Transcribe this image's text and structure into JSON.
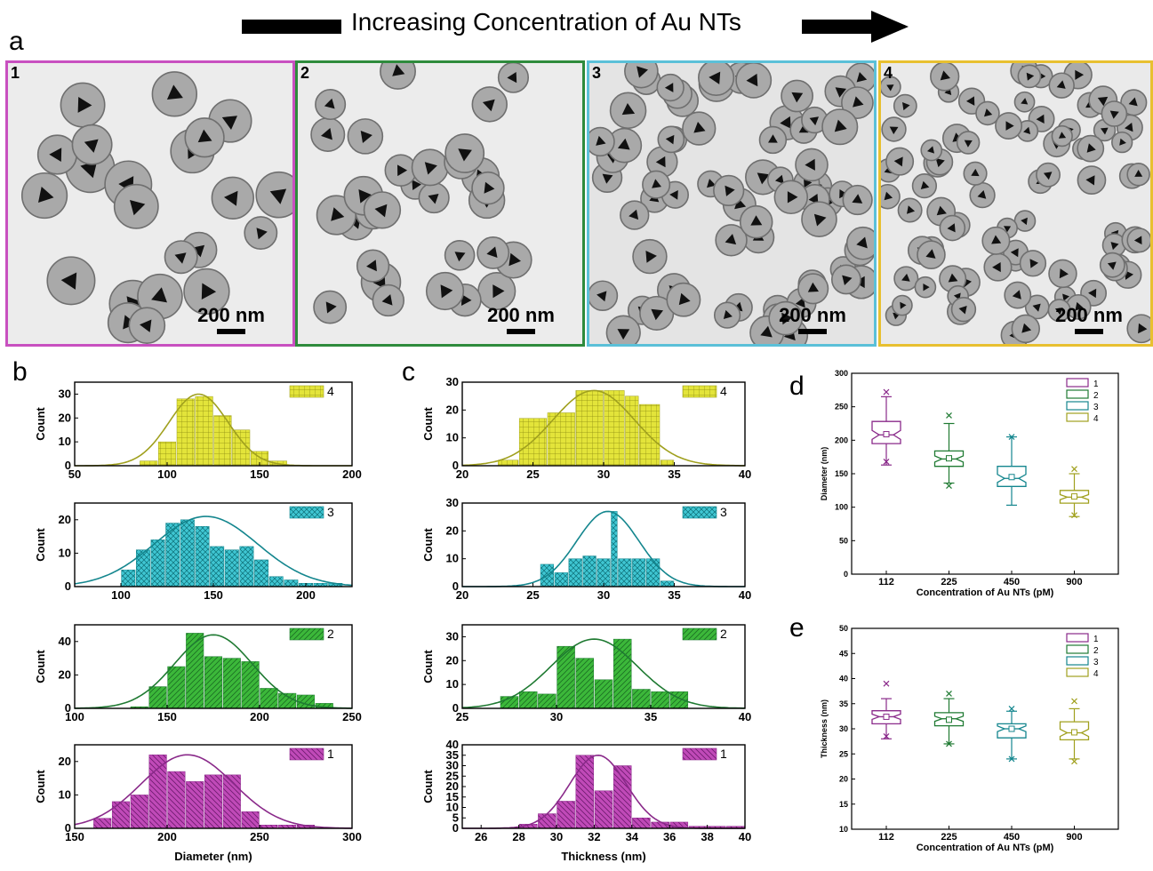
{
  "header": {
    "title": "Increasing Concentration of Au NTs"
  },
  "panel_letters": {
    "a": "a",
    "b": "b",
    "c": "c",
    "d": "d",
    "e": "e"
  },
  "tem_panels": [
    {
      "label": "1",
      "scale_bar": "200 nm",
      "border_color": "#c850c0"
    },
    {
      "label": "2",
      "scale_bar": "200 nm",
      "border_color": "#2e8b3c"
    },
    {
      "label": "3",
      "scale_bar": "200 nm",
      "border_color": "#5bc0d8"
    },
    {
      "label": "4",
      "scale_bar": "200 nm",
      "border_color": "#e8c030"
    }
  ],
  "colors": {
    "1": {
      "fill": "#c04ab8",
      "line": "#8a2a8a"
    },
    "2": {
      "fill": "#3cb83a",
      "line": "#1f7a32"
    },
    "3": {
      "fill": "#3fc6d2",
      "line": "#14868e"
    },
    "4": {
      "fill": "#e3e43a",
      "line": "#a0a01e"
    }
  },
  "chart_data": [
    {
      "panel": "b",
      "type": "bar",
      "series_label": "4",
      "ylabel": "Count",
      "xlabel": "",
      "xlim": [
        50,
        200
      ],
      "ylim": [
        0,
        35
      ],
      "xticks": [
        50,
        100,
        150,
        200
      ],
      "yticks": [
        0,
        10,
        20,
        30
      ],
      "bins": [
        [
          85,
          95,
          2
        ],
        [
          95,
          105,
          10
        ],
        [
          105,
          115,
          28
        ],
        [
          115,
          125,
          29
        ],
        [
          125,
          135,
          21
        ],
        [
          135,
          145,
          15
        ],
        [
          145,
          155,
          6
        ],
        [
          155,
          165,
          2
        ]
      ],
      "fit": {
        "mean": 117,
        "sd": 16,
        "peak": 30
      }
    },
    {
      "panel": "b",
      "type": "bar",
      "series_label": "3",
      "ylabel": "Count",
      "xlabel": "",
      "xlim": [
        75,
        225
      ],
      "ylim": [
        0,
        25
      ],
      "xticks": [
        100,
        150,
        200
      ],
      "yticks": [
        0,
        10,
        20
      ],
      "bins": [
        [
          100,
          108,
          5
        ],
        [
          108,
          116,
          11
        ],
        [
          116,
          124,
          14
        ],
        [
          124,
          132,
          19
        ],
        [
          132,
          140,
          20
        ],
        [
          140,
          148,
          18
        ],
        [
          148,
          156,
          12
        ],
        [
          156,
          164,
          11
        ],
        [
          164,
          172,
          12
        ],
        [
          172,
          180,
          8
        ],
        [
          180,
          188,
          3
        ],
        [
          188,
          196,
          2
        ],
        [
          196,
          204,
          1
        ],
        [
          204,
          212,
          1
        ],
        [
          212,
          220,
          1
        ]
      ],
      "fit": {
        "mean": 146,
        "sd": 28,
        "peak": 21
      }
    },
    {
      "panel": "b",
      "type": "bar",
      "series_label": "2",
      "ylabel": "Count",
      "xlabel": "",
      "xlim": [
        100,
        250
      ],
      "ylim": [
        0,
        50
      ],
      "xticks": [
        100,
        150,
        200,
        250
      ],
      "yticks": [
        0,
        20,
        40
      ],
      "bins": [
        [
          130,
          140,
          1
        ],
        [
          140,
          150,
          13
        ],
        [
          150,
          160,
          25
        ],
        [
          160,
          170,
          45
        ],
        [
          170,
          180,
          31
        ],
        [
          180,
          190,
          30
        ],
        [
          190,
          200,
          28
        ],
        [
          200,
          210,
          12
        ],
        [
          210,
          220,
          9
        ],
        [
          220,
          230,
          8
        ],
        [
          230,
          240,
          3
        ]
      ],
      "fit": {
        "mean": 175,
        "sd": 21,
        "peak": 44
      }
    },
    {
      "panel": "b",
      "type": "bar",
      "series_label": "1",
      "ylabel": "Count",
      "xlabel": "Diameter (nm)",
      "xlim": [
        150,
        300
      ],
      "ylim": [
        0,
        25
      ],
      "xticks": [
        150,
        200,
        250,
        300
      ],
      "yticks": [
        0,
        10,
        20
      ],
      "bins": [
        [
          160,
          170,
          3
        ],
        [
          170,
          180,
          8
        ],
        [
          180,
          190,
          10
        ],
        [
          190,
          200,
          22
        ],
        [
          200,
          210,
          17
        ],
        [
          210,
          220,
          14
        ],
        [
          220,
          230,
          16
        ],
        [
          230,
          240,
          16
        ],
        [
          240,
          250,
          5
        ],
        [
          250,
          260,
          1
        ],
        [
          260,
          270,
          1
        ],
        [
          270,
          280,
          1
        ]
      ],
      "fit": {
        "mean": 211,
        "sd": 25,
        "peak": 22
      }
    },
    {
      "panel": "c",
      "type": "bar",
      "series_label": "4",
      "ylabel": "Count",
      "xlabel": "",
      "xlim": [
        20,
        40
      ],
      "ylim": [
        0,
        30
      ],
      "xticks": [
        20,
        25,
        30,
        35,
        40
      ],
      "yticks": [
        0,
        10,
        20,
        30
      ],
      "bins": [
        [
          22.5,
          24,
          2
        ],
        [
          24,
          26,
          17
        ],
        [
          26,
          28,
          19
        ],
        [
          28,
          30,
          27
        ],
        [
          30,
          31.5,
          27
        ],
        [
          31.5,
          32.5,
          25
        ],
        [
          32.5,
          34,
          22
        ],
        [
          34,
          35,
          2
        ]
      ],
      "fit": {
        "mean": 29.3,
        "sd": 2.9,
        "peak": 27
      }
    },
    {
      "panel": "c",
      "type": "bar",
      "series_label": "3",
      "ylabel": "Count",
      "xlabel": "",
      "xlim": [
        20,
        40
      ],
      "ylim": [
        0,
        30
      ],
      "xticks": [
        20,
        25,
        30,
        35,
        40
      ],
      "yticks": [
        0,
        10,
        20,
        30
      ],
      "bins": [
        [
          25.5,
          26.5,
          8
        ],
        [
          26.5,
          27.5,
          5
        ],
        [
          27.5,
          28.5,
          10
        ],
        [
          28.5,
          29.5,
          11
        ],
        [
          29.5,
          30.5,
          10
        ],
        [
          30.5,
          31,
          27
        ],
        [
          31,
          32,
          10
        ],
        [
          32,
          33,
          10
        ],
        [
          33,
          34,
          10
        ],
        [
          34,
          35,
          2
        ],
        [
          35,
          36,
          0
        ]
      ],
      "fit": {
        "mean": 30.3,
        "sd": 2.2,
        "peak": 27
      }
    },
    {
      "panel": "c",
      "type": "bar",
      "series_label": "2",
      "ylabel": "Count",
      "xlabel": "",
      "xlim": [
        25,
        40
      ],
      "ylim": [
        0,
        35
      ],
      "xticks": [
        25,
        30,
        35,
        40
      ],
      "yticks": [
        0,
        10,
        20,
        30
      ],
      "bins": [
        [
          27,
          28,
          5
        ],
        [
          28,
          29,
          7
        ],
        [
          29,
          30,
          6
        ],
        [
          30,
          31,
          26
        ],
        [
          31,
          32,
          21
        ],
        [
          32,
          33,
          12
        ],
        [
          33,
          34,
          29
        ],
        [
          34,
          35,
          8
        ],
        [
          35,
          36,
          7
        ],
        [
          36,
          37,
          7
        ]
      ],
      "fit": {
        "mean": 32,
        "sd": 2.3,
        "peak": 29
      }
    },
    {
      "panel": "c",
      "type": "bar",
      "series_label": "1",
      "ylabel": "Count",
      "xlabel": "Thickness (nm)",
      "xlim": [
        25,
        40
      ],
      "ylim": [
        0,
        40
      ],
      "xticks": [
        26,
        28,
        30,
        32,
        34,
        36,
        38,
        40
      ],
      "yticks": [
        0,
        5,
        10,
        15,
        20,
        25,
        30,
        35,
        40
      ],
      "bins": [
        [
          28,
          29,
          2
        ],
        [
          29,
          30,
          7
        ],
        [
          30,
          31,
          13
        ],
        [
          31,
          32,
          35
        ],
        [
          32,
          33,
          18
        ],
        [
          33,
          34,
          30
        ],
        [
          34,
          35,
          5
        ],
        [
          35,
          36,
          3
        ],
        [
          36,
          37,
          3
        ],
        [
          37,
          38,
          1
        ],
        [
          38,
          39,
          1
        ],
        [
          39,
          40,
          1
        ]
      ],
      "fit": {
        "mean": 32.2,
        "sd": 1.5,
        "peak": 35
      }
    },
    {
      "panel": "d",
      "type": "box",
      "ylabel": "Diameter (nm)",
      "xlabel": "Concentration of Au NTs (pM)",
      "ylim": [
        0,
        300
      ],
      "yticks": [
        0,
        50,
        100,
        150,
        200,
        250,
        300
      ],
      "categories": [
        "112",
        "225",
        "450",
        "900"
      ],
      "legend": [
        "1",
        "2",
        "3",
        "4"
      ],
      "boxes": [
        {
          "q1": 195,
          "median": 208,
          "q3": 228,
          "whisker_low": 163,
          "whisker_high": 265,
          "mean": 209,
          "outliers": [
            168,
            272
          ]
        },
        {
          "q1": 161,
          "median": 172,
          "q3": 184,
          "whisker_low": 136,
          "whisker_high": 225,
          "mean": 173,
          "outliers": [
            132,
            237
          ]
        },
        {
          "q1": 131,
          "median": 143,
          "q3": 161,
          "whisker_low": 103,
          "whisker_high": 205,
          "mean": 145,
          "outliers": [
            205
          ]
        },
        {
          "q1": 106,
          "median": 115,
          "q3": 125,
          "whisker_low": 86,
          "whisker_high": 150,
          "mean": 116,
          "outliers": [
            88,
            157
          ]
        }
      ]
    },
    {
      "panel": "e",
      "type": "box",
      "ylabel": "Thickness (nm)",
      "xlabel": "Concentration of Au NTs (pM)",
      "ylim": [
        10,
        50
      ],
      "yticks": [
        10,
        15,
        20,
        25,
        30,
        35,
        40,
        45,
        50
      ],
      "categories": [
        "112",
        "225",
        "450",
        "900"
      ],
      "legend": [
        "1",
        "2",
        "3",
        "4"
      ],
      "boxes": [
        {
          "q1": 31,
          "median": 32.4,
          "q3": 33.6,
          "whisker_low": 28,
          "whisker_high": 36,
          "mean": 32.4,
          "outliers": [
            28.5,
            39
          ]
        },
        {
          "q1": 30.6,
          "median": 32,
          "q3": 33.2,
          "whisker_low": 27,
          "whisker_high": 36,
          "mean": 31.8,
          "outliers": [
            27,
            37
          ]
        },
        {
          "q1": 28.2,
          "median": 30,
          "q3": 31,
          "whisker_low": 24,
          "whisker_high": 33.5,
          "mean": 30,
          "outliers": [
            24,
            34
          ]
        },
        {
          "q1": 27.8,
          "median": 29.2,
          "q3": 31.4,
          "whisker_low": 24,
          "whisker_high": 34,
          "mean": 29.3,
          "outliers": [
            23.5,
            35.5
          ]
        }
      ]
    }
  ]
}
